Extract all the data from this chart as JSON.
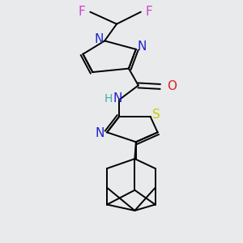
{
  "bg_color": "#e8eaec",
  "line_width": 1.4,
  "double_off": 0.01,
  "atom_colors": {
    "F": "#cc44cc",
    "N": "#2222cc",
    "O": "#dd2222",
    "S": "#cccc00",
    "H_N": "#44aaaa",
    "C": "#000000"
  },
  "font_size": 11
}
